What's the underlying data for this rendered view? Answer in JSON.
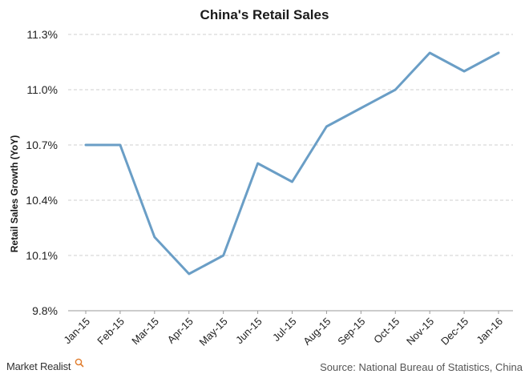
{
  "chart_data": {
    "type": "line",
    "title": "China's Retail Sales",
    "xlabel": "",
    "ylabel": "Retail Sales Growth (YoY)",
    "categories": [
      "Jan-15",
      "Feb-15",
      "Mar-15",
      "Apr-15",
      "May-15",
      "Jun-15",
      "Jul-15",
      "Aug-15",
      "Sep-15",
      "Oct-15",
      "Nov-15",
      "Dec-15",
      "Jan-16"
    ],
    "series": [
      {
        "values": [
          10.7,
          10.7,
          10.2,
          10.0,
          10.1,
          10.6,
          10.5,
          10.8,
          10.9,
          11.0,
          11.2,
          11.1,
          11.2
        ],
        "color": "#6a9ec6"
      }
    ],
    "ylim": [
      9.8,
      11.3
    ],
    "yticks": [
      9.8,
      10.1,
      10.4,
      10.7,
      11.0,
      11.3
    ],
    "ytick_labels": [
      "9.8%",
      "10.1%",
      "10.4%",
      "10.7%",
      "11.0%",
      "11.3%"
    ],
    "grid": true,
    "legend": "none"
  },
  "footer": {
    "brand": "Market Realist",
    "brand_icon": "magnifier-icon",
    "source": "Source: National Bureau of Statistics, China"
  },
  "colors": {
    "line": "#6a9ec6",
    "grid": "#cfcfcf",
    "brand_icon": "#e07b2a"
  }
}
